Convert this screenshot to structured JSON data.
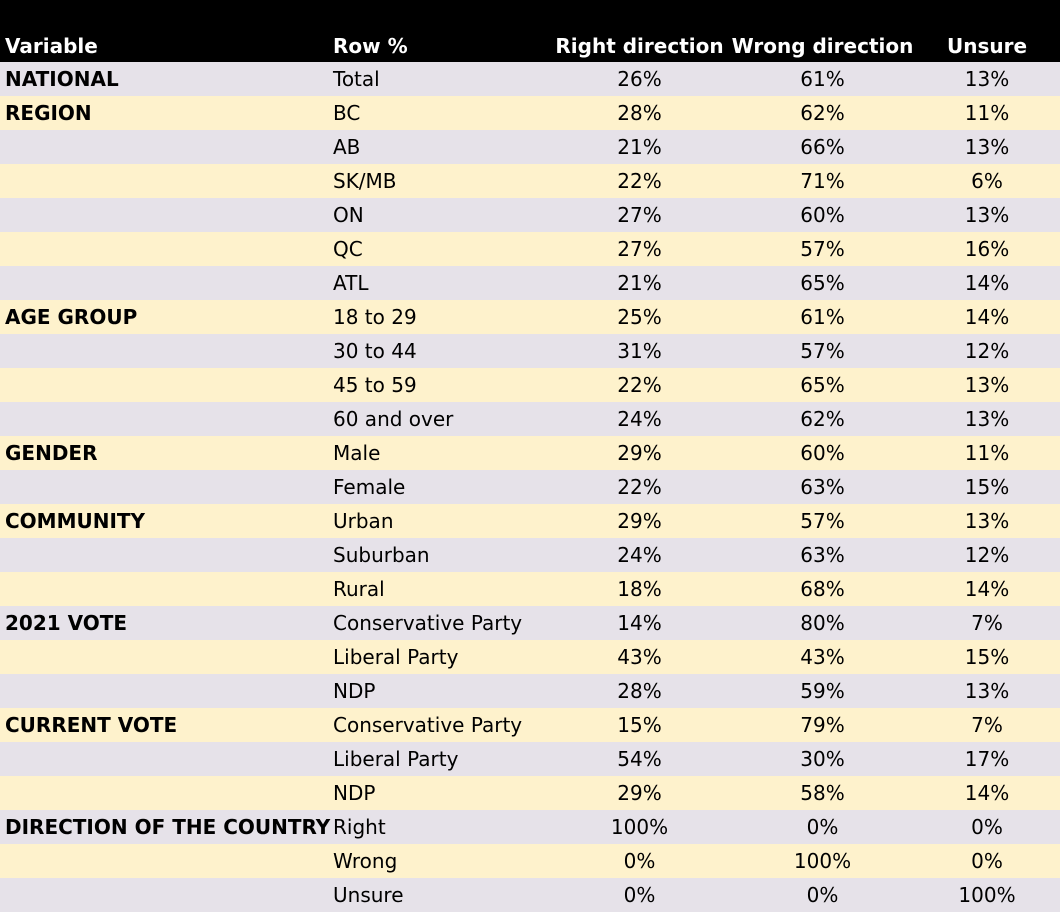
{
  "colors": {
    "header_bg": "#000000",
    "header_text": "#ffffff",
    "row_shade_a": "#e6e2e9",
    "row_shade_b": "#fef2cc"
  },
  "chart_data": {
    "type": "table",
    "columns": [
      "Variable",
      "Row %",
      "Right direction",
      "Wrong direction",
      "Unsure"
    ],
    "rows": [
      {
        "variable": "NATIONAL",
        "label": "Total",
        "right": "26%",
        "wrong": "61%",
        "unsure": "13%"
      },
      {
        "variable": "REGION",
        "label": "BC",
        "right": "28%",
        "wrong": "62%",
        "unsure": "11%"
      },
      {
        "variable": "",
        "label": "AB",
        "right": "21%",
        "wrong": "66%",
        "unsure": "13%"
      },
      {
        "variable": "",
        "label": "SK/MB",
        "right": "22%",
        "wrong": "71%",
        "unsure": "6%"
      },
      {
        "variable": "",
        "label": "ON",
        "right": "27%",
        "wrong": "60%",
        "unsure": "13%"
      },
      {
        "variable": "",
        "label": "QC",
        "right": "27%",
        "wrong": "57%",
        "unsure": "16%"
      },
      {
        "variable": "",
        "label": "ATL",
        "right": "21%",
        "wrong": "65%",
        "unsure": "14%"
      },
      {
        "variable": "AGE GROUP",
        "label": "18 to 29",
        "right": "25%",
        "wrong": "61%",
        "unsure": "14%"
      },
      {
        "variable": "",
        "label": "30 to 44",
        "right": "31%",
        "wrong": "57%",
        "unsure": "12%"
      },
      {
        "variable": "",
        "label": "45 to 59",
        "right": "22%",
        "wrong": "65%",
        "unsure": "13%"
      },
      {
        "variable": "",
        "label": "60 and over",
        "right": "24%",
        "wrong": "62%",
        "unsure": "13%"
      },
      {
        "variable": "GENDER",
        "label": "Male",
        "right": "29%",
        "wrong": "60%",
        "unsure": "11%"
      },
      {
        "variable": "",
        "label": "Female",
        "right": "22%",
        "wrong": "63%",
        "unsure": "15%"
      },
      {
        "variable": "COMMUNITY",
        "label": "Urban",
        "right": "29%",
        "wrong": "57%",
        "unsure": "13%"
      },
      {
        "variable": "",
        "label": "Suburban",
        "right": "24%",
        "wrong": "63%",
        "unsure": "12%"
      },
      {
        "variable": "",
        "label": "Rural",
        "right": "18%",
        "wrong": "68%",
        "unsure": "14%"
      },
      {
        "variable": "2021 VOTE",
        "label": "Conservative Party",
        "right": "14%",
        "wrong": "80%",
        "unsure": "7%"
      },
      {
        "variable": "",
        "label": "Liberal Party",
        "right": "43%",
        "wrong": "43%",
        "unsure": "15%"
      },
      {
        "variable": "",
        "label": "NDP",
        "right": "28%",
        "wrong": "59%",
        "unsure": "13%"
      },
      {
        "variable": "CURRENT VOTE",
        "label": "Conservative Party",
        "right": "15%",
        "wrong": "79%",
        "unsure": "7%"
      },
      {
        "variable": "",
        "label": "Liberal Party",
        "right": "54%",
        "wrong": "30%",
        "unsure": "17%"
      },
      {
        "variable": "",
        "label": "NDP",
        "right": "29%",
        "wrong": "58%",
        "unsure": "14%"
      },
      {
        "variable": "DIRECTION OF THE COUNTRY",
        "label": "Right",
        "right": "100%",
        "wrong": "0%",
        "unsure": "0%"
      },
      {
        "variable": "",
        "label": "Wrong",
        "right": "0%",
        "wrong": "100%",
        "unsure": "0%"
      },
      {
        "variable": "",
        "label": "Unsure",
        "right": "0%",
        "wrong": "0%",
        "unsure": "100%"
      }
    ]
  }
}
